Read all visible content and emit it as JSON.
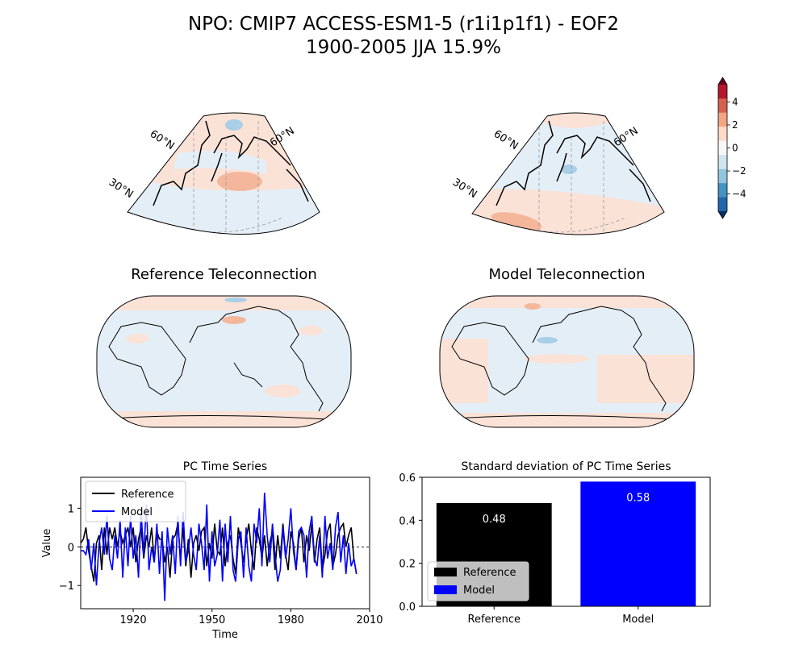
{
  "figure": {
    "title_line1": "NPO: CMIP7 ACCESS-ESM1-5 (r1i1p1f1) - EOF2",
    "title_line2": "1900-2005 JJA 15.9%",
    "reference_teleconnection_title": "Reference Teleconnection",
    "model_teleconnection_title": "Model Teleconnection",
    "map_lat_labels": [
      "60°N",
      "60°N",
      "30°N"
    ],
    "colorbar": {
      "ticks": [
        4,
        2,
        0,
        -2,
        -4
      ],
      "tick_labels": [
        "4",
        "2",
        "0",
        "−2",
        "−4"
      ],
      "colors": [
        "#67001f",
        "#b2182b",
        "#d6604d",
        "#f4a582",
        "#fddbc7",
        "#f7f7f7",
        "#d1e5f0",
        "#92c5de",
        "#4393c3",
        "#2166ac",
        "#053061"
      ]
    }
  },
  "chart_data": [
    {
      "type": "line",
      "title": "PC Time Series",
      "xlabel": "Time",
      "ylabel": "Value",
      "xlim": [
        1900,
        2010
      ],
      "ylim": [
        -1.6,
        1.8
      ],
      "x_ticks": [
        1920,
        1950,
        1980,
        2010
      ],
      "y_ticks": [
        1,
        0,
        -1
      ],
      "legend_position": "upper-left",
      "reference_line_y": 0,
      "x": [
        1900,
        1901,
        1902,
        1903,
        1904,
        1905,
        1906,
        1907,
        1908,
        1909,
        1910,
        1911,
        1912,
        1913,
        1914,
        1915,
        1916,
        1917,
        1918,
        1919,
        1920,
        1921,
        1922,
        1923,
        1924,
        1925,
        1926,
        1927,
        1928,
        1929,
        1930,
        1931,
        1932,
        1933,
        1934,
        1935,
        1936,
        1937,
        1938,
        1939,
        1940,
        1941,
        1942,
        1943,
        1944,
        1945,
        1946,
        1947,
        1948,
        1949,
        1950,
        1951,
        1952,
        1953,
        1954,
        1955,
        1956,
        1957,
        1958,
        1959,
        1960,
        1961,
        1962,
        1963,
        1964,
        1965,
        1966,
        1967,
        1968,
        1969,
        1970,
        1971,
        1972,
        1973,
        1974,
        1975,
        1976,
        1977,
        1978,
        1979,
        1980,
        1981,
        1982,
        1983,
        1984,
        1985,
        1986,
        1987,
        1988,
        1989,
        1990,
        1991,
        1992,
        1993,
        1994,
        1995,
        1996,
        1997,
        1998,
        1999,
        2000,
        2001,
        2002,
        2003,
        2004,
        2005
      ],
      "series": [
        {
          "name": "Reference",
          "color": "#000000",
          "values": [
            0.1,
            0.2,
            0.5,
            -0.1,
            -0.5,
            -0.9,
            0.1,
            0.3,
            -0.6,
            0.5,
            -0.2,
            0.5,
            0.2,
            0.5,
            0.0,
            0.4,
            0.1,
            0.3,
            0.5,
            0.0,
            0.5,
            -0.4,
            0.2,
            0.5,
            -0.3,
            0.3,
            0.0,
            0.5,
            -0.4,
            0.4,
            0.2,
            0.2,
            -0.4,
            0.0,
            -0.8,
            0.2,
            0.3,
            0.6,
            -0.3,
            0.5,
            -0.5,
            0.2,
            -0.8,
            0.1,
            0.3,
            -0.1,
            0.4,
            0.5,
            -0.5,
            0.1,
            -0.3,
            0.6,
            -0.1,
            -0.2,
            0.5,
            -0.5,
            0.1,
            0.3,
            -0.3,
            -0.7,
            0.5,
            0.1,
            -0.4,
            0.2,
            0.6,
            -0.1,
            -0.6,
            0.5,
            0.2,
            -0.3,
            0.3,
            -0.5,
            0.1,
            0.4,
            -0.6,
            0.3,
            -0.3,
            0.6,
            -0.2,
            -0.6,
            0.4,
            0.1,
            -0.6,
            0.2,
            0.5,
            -0.4,
            0.3,
            -0.1,
            0.6,
            -0.4,
            0.2,
            0.5,
            -0.6,
            -0.2,
            0.4,
            0.6,
            -0.5,
            -0.2,
            0.3,
            0.5,
            0.6,
            0.0,
            0.3,
            0.5,
            -0.3,
            -0.7
          ]
        },
        {
          "name": "Model",
          "color": "#0000ff",
          "values": [
            -0.1,
            -0.1,
            -0.2,
            0.2,
            -0.6,
            0.1,
            -1.0,
            0.1,
            0.5,
            -0.2,
            0.8,
            -0.3,
            -0.6,
            0.3,
            -0.3,
            0.7,
            -0.8,
            0.5,
            -0.5,
            0.8,
            -0.3,
            0.3,
            -0.8,
            0.9,
            -0.2,
            1.1,
            -0.6,
            0.0,
            -0.4,
            0.6,
            -0.7,
            0.4,
            -1.4,
            0.5,
            -0.2,
            0.3,
            -0.7,
            0.8,
            -0.5,
            0.9,
            -0.4,
            -0.1,
            0.5,
            -0.2,
            -0.6,
            0.6,
            0.1,
            -0.6,
            1.1,
            -0.9,
            0.4,
            -0.5,
            -0.2,
            0.7,
            -0.9,
            0.6,
            -0.4,
            0.8,
            -0.6,
            -0.9,
            0.2,
            0.4,
            -0.8,
            0.5,
            -0.5,
            -0.9,
            0.6,
            0.1,
            1.0,
            -0.5,
            1.4,
            0.3,
            -0.4,
            0.6,
            -0.2,
            -0.9,
            -0.6,
            0.5,
            -0.3,
            0.2,
            1.0,
            -0.1,
            -0.6,
            0.4,
            0.5,
            0.3,
            -0.8,
            0.4,
            0.8,
            -0.3,
            -0.5,
            0.3,
            -0.8,
            0.8,
            -0.3,
            0.1,
            -0.6,
            0.5,
            0.9,
            -0.4,
            0.3,
            -0.7,
            0.1,
            -0.5,
            -0.3,
            -0.7
          ]
        }
      ]
    },
    {
      "type": "bar",
      "title": "Standard deviation of PC Time Series",
      "categories": [
        "Reference",
        "Model"
      ],
      "values": [
        0.48,
        0.58
      ],
      "value_labels": [
        "0.48",
        "0.58"
      ],
      "colors": [
        "#000000",
        "#0000ff"
      ],
      "ylim": [
        0,
        0.6
      ],
      "y_ticks": [
        0.0,
        0.2,
        0.4,
        0.6
      ],
      "y_tick_labels": [
        "0.0",
        "0.2",
        "0.4",
        "0.6"
      ],
      "legend": [
        "Reference",
        "Model"
      ],
      "legend_position": "lower-left"
    }
  ]
}
